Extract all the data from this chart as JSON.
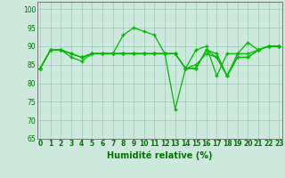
{
  "xlabel": "Humidité relative (%)",
  "background_color": "#cde8dd",
  "grid_color": "#a0c8b8",
  "line_color": "#00bb00",
  "ylim": [
    65,
    102
  ],
  "xlim": [
    -0.3,
    23.3
  ],
  "yticks": [
    65,
    70,
    75,
    80,
    85,
    90,
    95,
    100
  ],
  "xticks": [
    0,
    1,
    2,
    3,
    4,
    5,
    6,
    7,
    8,
    9,
    10,
    11,
    12,
    13,
    14,
    15,
    16,
    17,
    18,
    19,
    20,
    21,
    22,
    23
  ],
  "series": [
    [
      84,
      89,
      89,
      87,
      86,
      88,
      88,
      88,
      93,
      95,
      94,
      93,
      88,
      73,
      84,
      89,
      90,
      82,
      88,
      88,
      91,
      89,
      90,
      90
    ],
    [
      84,
      89,
      89,
      88,
      87,
      88,
      88,
      88,
      88,
      88,
      88,
      88,
      88,
      88,
      84,
      84,
      89,
      88,
      82,
      88,
      88,
      89,
      90,
      90
    ],
    [
      84,
      89,
      89,
      88,
      87,
      88,
      88,
      88,
      88,
      88,
      88,
      88,
      88,
      88,
      84,
      84,
      89,
      87,
      82,
      87,
      87,
      89,
      90,
      90
    ],
    [
      84,
      89,
      89,
      88,
      87,
      88,
      88,
      88,
      88,
      88,
      88,
      88,
      88,
      88,
      84,
      85,
      88,
      87,
      82,
      87,
      87,
      89,
      90,
      90
    ]
  ]
}
